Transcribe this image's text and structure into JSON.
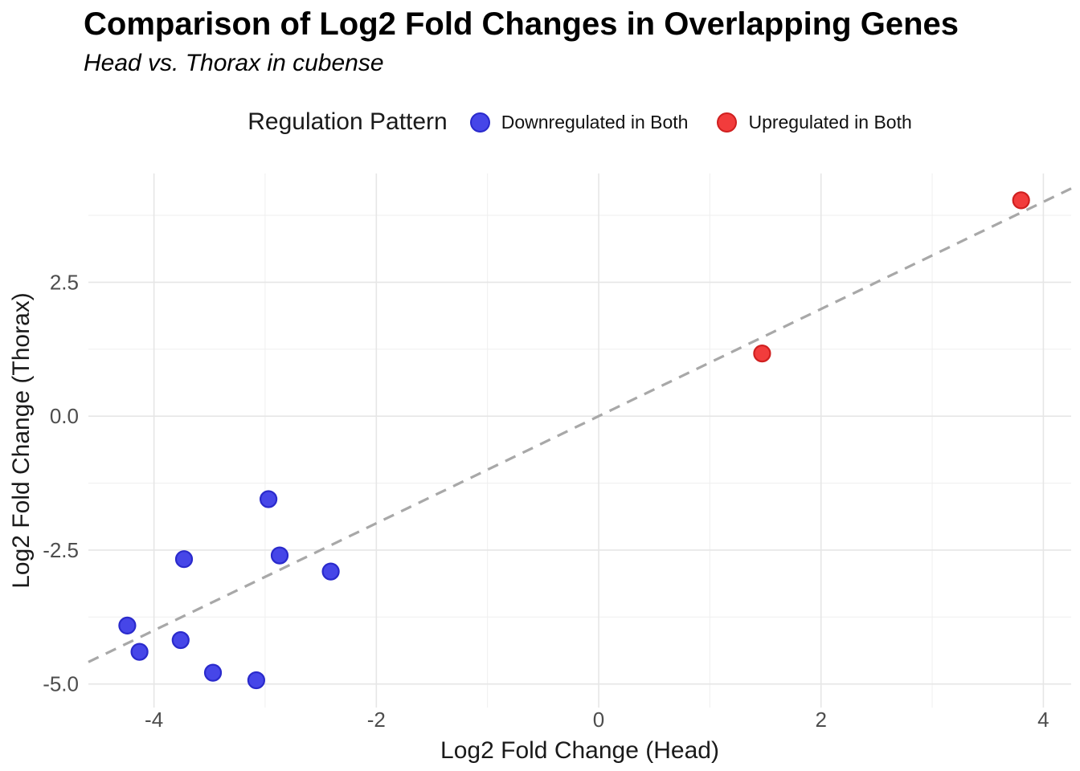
{
  "chart_data": {
    "type": "scatter",
    "title": "Comparison of Log2 Fold Changes in Overlapping Genes",
    "subtitle": "Head vs. Thorax in cubense",
    "xlabel": "Log2 Fold Change (Head)",
    "ylabel": "Log2 Fold Change (Thorax)",
    "legend_title": "Regulation Pattern",
    "legend_position": "top",
    "grid": true,
    "xlim": [
      -4.59,
      4.25
    ],
    "ylim": [
      -5.44,
      4.53
    ],
    "x_major_ticks": [
      -4,
      -2,
      0,
      2,
      4
    ],
    "x_tick_labels": [
      "-4",
      "-2",
      "0",
      "2",
      "4"
    ],
    "x_minor_ticks": [
      -3,
      -1,
      1,
      3
    ],
    "y_major_ticks": [
      2.5,
      0,
      -2.5,
      -5
    ],
    "y_tick_labels": [
      "2.5",
      "0.0",
      "-2.5",
      "-5.0"
    ],
    "y_minor_ticks": [
      3.75,
      1.25,
      -1.25,
      -3.75
    ],
    "series": [
      {
        "name": "Downregulated in Both",
        "fill": "#4646E8",
        "stroke": "#2A2ACC",
        "points": [
          [
            -2.97,
            -1.55
          ],
          [
            -3.73,
            -2.67
          ],
          [
            -2.87,
            -2.6
          ],
          [
            -2.41,
            -2.9
          ],
          [
            -4.24,
            -3.91
          ],
          [
            -3.76,
            -4.18
          ],
          [
            -4.13,
            -4.4
          ],
          [
            -3.47,
            -4.79
          ],
          [
            -3.08,
            -4.93
          ]
        ]
      },
      {
        "name": "Upregulated in Both",
        "fill": "#F23C3C",
        "stroke": "#D02020",
        "points": [
          [
            1.47,
            1.17
          ],
          [
            3.8,
            4.03
          ]
        ]
      }
    ],
    "reference_line": {
      "slope": 1,
      "intercept": 0,
      "style": "dashed",
      "color": "#A8A8A8"
    }
  },
  "colors": {
    "major_grid": "#E6E6E6",
    "minor_grid": "#F0F0F0",
    "tick_label": "#4D4D4D",
    "axis_title": "#1A1A1A",
    "background": "#FFFFFF"
  }
}
